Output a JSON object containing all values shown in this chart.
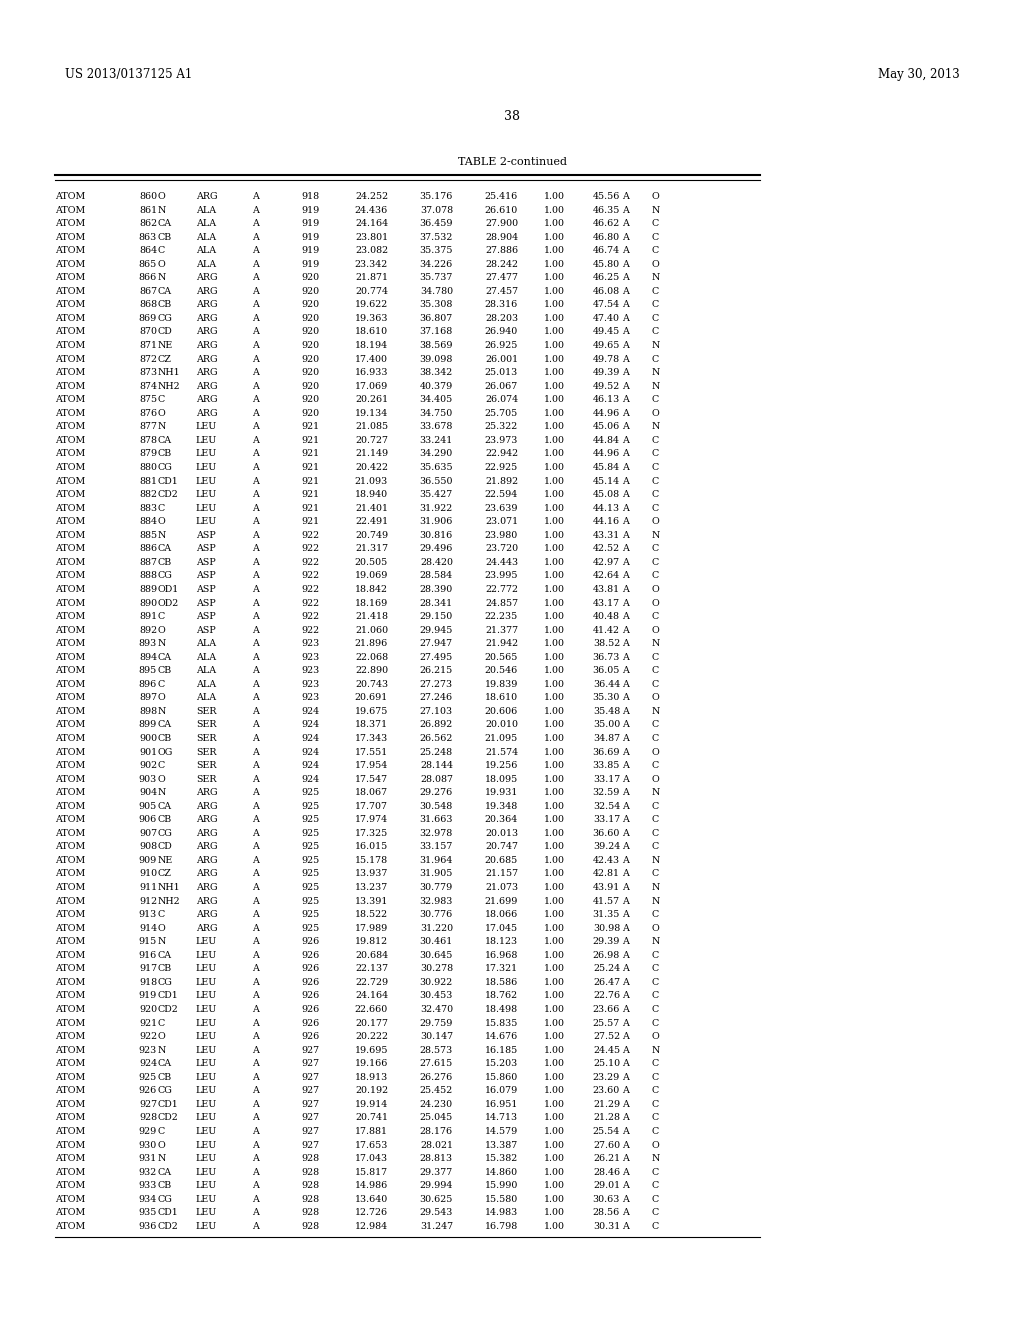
{
  "header_left": "US 2013/0137125 A1",
  "header_right": "May 30, 2013",
  "page_number": "38",
  "table_title": "TABLE 2-continued",
  "rows": [
    [
      "ATOM",
      "860",
      "O",
      "ARG",
      "A",
      "918",
      "24.252",
      "35.176",
      "25.416",
      "1.00",
      "45.56",
      "A",
      "O"
    ],
    [
      "ATOM",
      "861",
      "N",
      "ALA",
      "A",
      "919",
      "24.436",
      "37.078",
      "26.610",
      "1.00",
      "46.35",
      "A",
      "N"
    ],
    [
      "ATOM",
      "862",
      "CA",
      "ALA",
      "A",
      "919",
      "24.164",
      "36.459",
      "27.900",
      "1.00",
      "46.62",
      "A",
      "C"
    ],
    [
      "ATOM",
      "863",
      "CB",
      "ALA",
      "A",
      "919",
      "23.801",
      "37.532",
      "28.904",
      "1.00",
      "46.80",
      "A",
      "C"
    ],
    [
      "ATOM",
      "864",
      "C",
      "ALA",
      "A",
      "919",
      "23.082",
      "35.375",
      "27.886",
      "1.00",
      "46.74",
      "A",
      "C"
    ],
    [
      "ATOM",
      "865",
      "O",
      "ALA",
      "A",
      "919",
      "23.342",
      "34.226",
      "28.242",
      "1.00",
      "45.80",
      "A",
      "O"
    ],
    [
      "ATOM",
      "866",
      "N",
      "ARG",
      "A",
      "920",
      "21.871",
      "35.737",
      "27.477",
      "1.00",
      "46.25",
      "A",
      "N"
    ],
    [
      "ATOM",
      "867",
      "CA",
      "ARG",
      "A",
      "920",
      "20.774",
      "34.780",
      "27.457",
      "1.00",
      "46.08",
      "A",
      "C"
    ],
    [
      "ATOM",
      "868",
      "CB",
      "ARG",
      "A",
      "920",
      "19.622",
      "35.308",
      "28.316",
      "1.00",
      "47.54",
      "A",
      "C"
    ],
    [
      "ATOM",
      "869",
      "CG",
      "ARG",
      "A",
      "920",
      "19.363",
      "36.807",
      "28.203",
      "1.00",
      "47.40",
      "A",
      "C"
    ],
    [
      "ATOM",
      "870",
      "CD",
      "ARG",
      "A",
      "920",
      "18.610",
      "37.168",
      "26.940",
      "1.00",
      "49.45",
      "A",
      "C"
    ],
    [
      "ATOM",
      "871",
      "NE",
      "ARG",
      "A",
      "920",
      "18.194",
      "38.569",
      "26.925",
      "1.00",
      "49.65",
      "A",
      "N"
    ],
    [
      "ATOM",
      "872",
      "CZ",
      "ARG",
      "A",
      "920",
      "17.400",
      "39.098",
      "26.001",
      "1.00",
      "49.78",
      "A",
      "C"
    ],
    [
      "ATOM",
      "873",
      "NH1",
      "ARG",
      "A",
      "920",
      "16.933",
      "38.342",
      "25.013",
      "1.00",
      "49.39",
      "A",
      "N"
    ],
    [
      "ATOM",
      "874",
      "NH2",
      "ARG",
      "A",
      "920",
      "17.069",
      "40.379",
      "26.067",
      "1.00",
      "49.52",
      "A",
      "N"
    ],
    [
      "ATOM",
      "875",
      "C",
      "ARG",
      "A",
      "920",
      "20.261",
      "34.405",
      "26.074",
      "1.00",
      "46.13",
      "A",
      "C"
    ],
    [
      "ATOM",
      "876",
      "O",
      "ARG",
      "A",
      "920",
      "19.134",
      "34.750",
      "25.705",
      "1.00",
      "44.96",
      "A",
      "O"
    ],
    [
      "ATOM",
      "877",
      "N",
      "LEU",
      "A",
      "921",
      "21.085",
      "33.678",
      "25.322",
      "1.00",
      "45.06",
      "A",
      "N"
    ],
    [
      "ATOM",
      "878",
      "CA",
      "LEU",
      "A",
      "921",
      "20.727",
      "33.241",
      "23.973",
      "1.00",
      "44.84",
      "A",
      "C"
    ],
    [
      "ATOM",
      "879",
      "CB",
      "LEU",
      "A",
      "921",
      "21.149",
      "34.290",
      "22.942",
      "1.00",
      "44.96",
      "A",
      "C"
    ],
    [
      "ATOM",
      "880",
      "CG",
      "LEU",
      "A",
      "921",
      "20.422",
      "35.635",
      "22.925",
      "1.00",
      "45.84",
      "A",
      "C"
    ],
    [
      "ATOM",
      "881",
      "CD1",
      "LEU",
      "A",
      "921",
      "21.093",
      "36.550",
      "21.892",
      "1.00",
      "45.14",
      "A",
      "C"
    ],
    [
      "ATOM",
      "882",
      "CD2",
      "LEU",
      "A",
      "921",
      "18.940",
      "35.427",
      "22.594",
      "1.00",
      "45.08",
      "A",
      "C"
    ],
    [
      "ATOM",
      "883",
      "C",
      "LEU",
      "A",
      "921",
      "21.401",
      "31.922",
      "23.639",
      "1.00",
      "44.13",
      "A",
      "C"
    ],
    [
      "ATOM",
      "884",
      "O",
      "LEU",
      "A",
      "921",
      "22.491",
      "31.906",
      "23.071",
      "1.00",
      "44.16",
      "A",
      "O"
    ],
    [
      "ATOM",
      "885",
      "N",
      "ASP",
      "A",
      "922",
      "20.749",
      "30.816",
      "23.980",
      "1.00",
      "43.31",
      "A",
      "N"
    ],
    [
      "ATOM",
      "886",
      "CA",
      "ASP",
      "A",
      "922",
      "21.317",
      "29.496",
      "23.720",
      "1.00",
      "42.52",
      "A",
      "C"
    ],
    [
      "ATOM",
      "887",
      "CB",
      "ASP",
      "A",
      "922",
      "20.505",
      "28.420",
      "24.443",
      "1.00",
      "42.97",
      "A",
      "C"
    ],
    [
      "ATOM",
      "888",
      "CG",
      "ASP",
      "A",
      "922",
      "19.069",
      "28.584",
      "23.995",
      "1.00",
      "42.64",
      "A",
      "C"
    ],
    [
      "ATOM",
      "889",
      "OD1",
      "ASP",
      "A",
      "922",
      "18.842",
      "28.390",
      "22.772",
      "1.00",
      "43.81",
      "A",
      "O"
    ],
    [
      "ATOM",
      "890",
      "OD2",
      "ASP",
      "A",
      "922",
      "18.169",
      "28.341",
      "24.857",
      "1.00",
      "43.17",
      "A",
      "O"
    ],
    [
      "ATOM",
      "891",
      "C",
      "ASP",
      "A",
      "922",
      "21.418",
      "29.150",
      "22.235",
      "1.00",
      "40.48",
      "A",
      "C"
    ],
    [
      "ATOM",
      "892",
      "O",
      "ASP",
      "A",
      "922",
      "21.060",
      "29.945",
      "21.377",
      "1.00",
      "41.42",
      "A",
      "O"
    ],
    [
      "ATOM",
      "893",
      "N",
      "ALA",
      "A",
      "923",
      "21.896",
      "27.947",
      "21.942",
      "1.00",
      "38.52",
      "A",
      "N"
    ],
    [
      "ATOM",
      "894",
      "CA",
      "ALA",
      "A",
      "923",
      "22.068",
      "27.495",
      "20.565",
      "1.00",
      "36.73",
      "A",
      "C"
    ],
    [
      "ATOM",
      "895",
      "CB",
      "ALA",
      "A",
      "923",
      "22.890",
      "26.215",
      "20.546",
      "1.00",
      "36.05",
      "A",
      "C"
    ],
    [
      "ATOM",
      "896",
      "C",
      "ALA",
      "A",
      "923",
      "20.743",
      "27.273",
      "19.839",
      "1.00",
      "36.44",
      "A",
      "C"
    ],
    [
      "ATOM",
      "897",
      "O",
      "ALA",
      "A",
      "923",
      "20.691",
      "27.246",
      "18.610",
      "1.00",
      "35.30",
      "A",
      "O"
    ],
    [
      "ATOM",
      "898",
      "N",
      "SER",
      "A",
      "924",
      "19.675",
      "27.103",
      "20.606",
      "1.00",
      "35.48",
      "A",
      "N"
    ],
    [
      "ATOM",
      "899",
      "CA",
      "SER",
      "A",
      "924",
      "18.371",
      "26.892",
      "20.010",
      "1.00",
      "35.00",
      "A",
      "C"
    ],
    [
      "ATOM",
      "900",
      "CB",
      "SER",
      "A",
      "924",
      "17.343",
      "26.562",
      "21.095",
      "1.00",
      "34.87",
      "A",
      "C"
    ],
    [
      "ATOM",
      "901",
      "OG",
      "SER",
      "A",
      "924",
      "17.551",
      "25.248",
      "21.574",
      "1.00",
      "36.69",
      "A",
      "O"
    ],
    [
      "ATOM",
      "902",
      "C",
      "SER",
      "A",
      "924",
      "17.954",
      "28.144",
      "19.256",
      "1.00",
      "33.85",
      "A",
      "C"
    ],
    [
      "ATOM",
      "903",
      "O",
      "SER",
      "A",
      "924",
      "17.547",
      "28.087",
      "18.095",
      "1.00",
      "33.17",
      "A",
      "O"
    ],
    [
      "ATOM",
      "904",
      "N",
      "ARG",
      "A",
      "925",
      "18.067",
      "29.276",
      "19.931",
      "1.00",
      "32.59",
      "A",
      "N"
    ],
    [
      "ATOM",
      "905",
      "CA",
      "ARG",
      "A",
      "925",
      "17.707",
      "30.548",
      "19.348",
      "1.00",
      "32.54",
      "A",
      "C"
    ],
    [
      "ATOM",
      "906",
      "CB",
      "ARG",
      "A",
      "925",
      "17.974",
      "31.663",
      "20.364",
      "1.00",
      "33.17",
      "A",
      "C"
    ],
    [
      "ATOM",
      "907",
      "CG",
      "ARG",
      "A",
      "925",
      "17.325",
      "32.978",
      "20.013",
      "1.00",
      "36.60",
      "A",
      "C"
    ],
    [
      "ATOM",
      "908",
      "CD",
      "ARG",
      "A",
      "925",
      "16.015",
      "33.157",
      "20.747",
      "1.00",
      "39.24",
      "A",
      "C"
    ],
    [
      "ATOM",
      "909",
      "NE",
      "ARG",
      "A",
      "925",
      "15.178",
      "31.964",
      "20.685",
      "1.00",
      "42.43",
      "A",
      "N"
    ],
    [
      "ATOM",
      "910",
      "CZ",
      "ARG",
      "A",
      "925",
      "13.937",
      "31.905",
      "21.157",
      "1.00",
      "42.81",
      "A",
      "C"
    ],
    [
      "ATOM",
      "911",
      "NH1",
      "ARG",
      "A",
      "925",
      "13.237",
      "30.779",
      "21.073",
      "1.00",
      "43.91",
      "A",
      "N"
    ],
    [
      "ATOM",
      "912",
      "NH2",
      "ARG",
      "A",
      "925",
      "13.391",
      "32.983",
      "21.699",
      "1.00",
      "41.57",
      "A",
      "N"
    ],
    [
      "ATOM",
      "913",
      "C",
      "ARG",
      "A",
      "925",
      "18.522",
      "30.776",
      "18.066",
      "1.00",
      "31.35",
      "A",
      "C"
    ],
    [
      "ATOM",
      "914",
      "O",
      "ARG",
      "A",
      "925",
      "17.989",
      "31.220",
      "17.045",
      "1.00",
      "30.98",
      "A",
      "O"
    ],
    [
      "ATOM",
      "915",
      "N",
      "LEU",
      "A",
      "926",
      "19.812",
      "30.461",
      "18.123",
      "1.00",
      "29.39",
      "A",
      "N"
    ],
    [
      "ATOM",
      "916",
      "CA",
      "LEU",
      "A",
      "926",
      "20.684",
      "30.645",
      "16.968",
      "1.00",
      "26.98",
      "A",
      "C"
    ],
    [
      "ATOM",
      "917",
      "CB",
      "LEU",
      "A",
      "926",
      "22.137",
      "30.278",
      "17.321",
      "1.00",
      "25.24",
      "A",
      "C"
    ],
    [
      "ATOM",
      "918",
      "CG",
      "LEU",
      "A",
      "926",
      "22.729",
      "30.922",
      "18.586",
      "1.00",
      "26.47",
      "A",
      "C"
    ],
    [
      "ATOM",
      "919",
      "CD1",
      "LEU",
      "A",
      "926",
      "24.164",
      "30.453",
      "18.762",
      "1.00",
      "22.76",
      "A",
      "C"
    ],
    [
      "ATOM",
      "920",
      "CD2",
      "LEU",
      "A",
      "926",
      "22.660",
      "32.470",
      "18.498",
      "1.00",
      "23.66",
      "A",
      "C"
    ],
    [
      "ATOM",
      "921",
      "C",
      "LEU",
      "A",
      "926",
      "20.177",
      "29.759",
      "15.835",
      "1.00",
      "25.57",
      "A",
      "C"
    ],
    [
      "ATOM",
      "922",
      "O",
      "LEU",
      "A",
      "926",
      "20.222",
      "30.147",
      "14.676",
      "1.00",
      "27.52",
      "A",
      "O"
    ],
    [
      "ATOM",
      "923",
      "N",
      "LEU",
      "A",
      "927",
      "19.695",
      "28.573",
      "16.185",
      "1.00",
      "24.45",
      "A",
      "N"
    ],
    [
      "ATOM",
      "924",
      "CA",
      "LEU",
      "A",
      "927",
      "19.166",
      "27.615",
      "15.203",
      "1.00",
      "25.10",
      "A",
      "C"
    ],
    [
      "ATOM",
      "925",
      "CB",
      "LEU",
      "A",
      "927",
      "18.913",
      "26.276",
      "15.860",
      "1.00",
      "23.29",
      "A",
      "C"
    ],
    [
      "ATOM",
      "926",
      "CG",
      "LEU",
      "A",
      "927",
      "20.192",
      "25.452",
      "16.079",
      "1.00",
      "23.60",
      "A",
      "C"
    ],
    [
      "ATOM",
      "927",
      "CD1",
      "LEU",
      "A",
      "927",
      "19.914",
      "24.230",
      "16.951",
      "1.00",
      "21.29",
      "A",
      "C"
    ],
    [
      "ATOM",
      "928",
      "CD2",
      "LEU",
      "A",
      "927",
      "20.741",
      "25.045",
      "14.713",
      "1.00",
      "21.28",
      "A",
      "C"
    ],
    [
      "ATOM",
      "929",
      "C",
      "LEU",
      "A",
      "927",
      "17.881",
      "28.176",
      "14.579",
      "1.00",
      "25.54",
      "A",
      "C"
    ],
    [
      "ATOM",
      "930",
      "O",
      "LEU",
      "A",
      "927",
      "17.653",
      "28.021",
      "13.387",
      "1.00",
      "27.60",
      "A",
      "O"
    ],
    [
      "ATOM",
      "931",
      "N",
      "LEU",
      "A",
      "928",
      "17.043",
      "28.813",
      "15.382",
      "1.00",
      "26.21",
      "A",
      "N"
    ],
    [
      "ATOM",
      "932",
      "CA",
      "LEU",
      "A",
      "928",
      "15.817",
      "29.377",
      "14.860",
      "1.00",
      "28.46",
      "A",
      "C"
    ],
    [
      "ATOM",
      "933",
      "CB",
      "LEU",
      "A",
      "928",
      "14.986",
      "29.994",
      "15.990",
      "1.00",
      "29.01",
      "A",
      "C"
    ],
    [
      "ATOM",
      "934",
      "CG",
      "LEU",
      "A",
      "928",
      "13.640",
      "30.625",
      "15.580",
      "1.00",
      "30.63",
      "A",
      "C"
    ],
    [
      "ATOM",
      "935",
      "CD1",
      "LEU",
      "A",
      "928",
      "12.726",
      "29.543",
      "14.983",
      "1.00",
      "28.56",
      "A",
      "C"
    ],
    [
      "ATOM",
      "936",
      "CD2",
      "LEU",
      "A",
      "928",
      "12.984",
      "31.247",
      "16.798",
      "1.00",
      "30.31",
      "A",
      "C"
    ]
  ],
  "font_size": 6.8,
  "bg_color": "#ffffff",
  "text_color": "#000000"
}
